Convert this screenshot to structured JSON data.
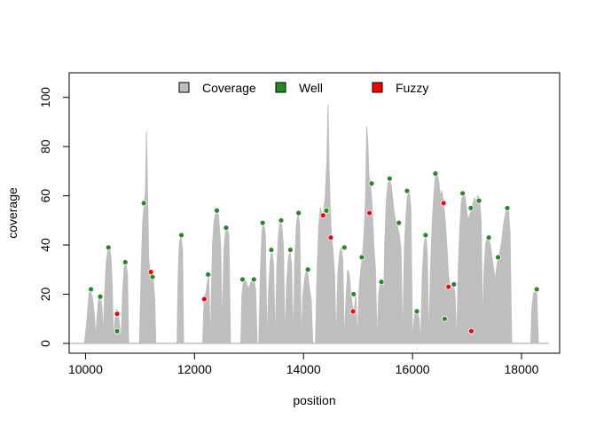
{
  "chart_data": {
    "type": "line",
    "title": "",
    "xlabel": "position",
    "ylabel": "coverage",
    "xlim": [
      9700,
      18700
    ],
    "ylim": [
      -4,
      110
    ],
    "xticks": [
      10000,
      12000,
      14000,
      16000,
      18000
    ],
    "yticks": [
      0,
      20,
      40,
      60,
      80,
      100
    ],
    "grid": false,
    "legend": {
      "position": "top",
      "entries": [
        {
          "label": "Coverage",
          "color": "#bebebe"
        },
        {
          "label": "Well",
          "color": "#228b22"
        },
        {
          "label": "Fuzzy",
          "color": "#ff0000"
        }
      ]
    },
    "colors": {
      "coverage": "#bebebe",
      "well": "#228b22",
      "fuzzy": "#ff0000"
    },
    "coverage_regions": [
      {
        "x": [
          9980,
          10020,
          10050,
          10070,
          10090,
          10110,
          10130,
          10160,
          10180,
          10200,
          10210
        ],
        "y": [
          0,
          8,
          16,
          21,
          22,
          20,
          18,
          12,
          6,
          2,
          0
        ]
      },
      {
        "x": [
          10190,
          10210,
          10240,
          10270,
          10300,
          10330
        ],
        "y": [
          0,
          10,
          18,
          20,
          15,
          0
        ]
      },
      {
        "x": [
          10320,
          10350,
          10380,
          10410,
          10440,
          10470,
          10490,
          10500,
          10520
        ],
        "y": [
          0,
          20,
          33,
          38,
          40,
          34,
          24,
          12,
          0
        ]
      },
      {
        "x": [
          10520,
          10540,
          10570,
          10600,
          10630,
          10650
        ],
        "y": [
          0,
          10,
          14,
          12,
          6,
          0
        ]
      },
      {
        "x": [
          10650,
          10680,
          10710,
          10740,
          10770,
          10790
        ],
        "y": [
          0,
          20,
          31,
          33,
          28,
          0
        ]
      },
      {
        "x": [
          10990,
          11020,
          11050,
          11080,
          11100,
          11120,
          11140,
          11160,
          11180,
          11200,
          11220,
          11240,
          11270,
          11290
        ],
        "y": [
          0,
          28,
          50,
          57,
          62,
          86,
          60,
          34,
          30,
          28,
          29,
          27,
          18,
          0
        ]
      },
      {
        "x": [
          11680,
          11700,
          11720,
          11750,
          11780,
          11800
        ],
        "y": [
          0,
          28,
          40,
          44,
          38,
          0
        ]
      },
      {
        "x": [
          12150,
          12170,
          12190,
          12210,
          12230,
          12260,
          12290
        ],
        "y": [
          0,
          14,
          20,
          20,
          24,
          28,
          0
        ]
      },
      {
        "x": [
          12290,
          12330,
          12360,
          12400,
          12440,
          12480,
          12510
        ],
        "y": [
          0,
          40,
          50,
          54,
          52,
          40,
          0
        ]
      },
      {
        "x": [
          12500,
          12540,
          12570,
          12600,
          12630,
          12660
        ],
        "y": [
          0,
          38,
          46,
          47,
          44,
          0
        ]
      },
      {
        "x": [
          12850,
          12870,
          12900,
          12930,
          12960,
          12990,
          13020,
          13060,
          13090,
          13120,
          13150
        ],
        "y": [
          0,
          20,
          26,
          26,
          24,
          22,
          24,
          26,
          26,
          22,
          0
        ]
      },
      {
        "x": [
          13180,
          13210,
          13240,
          13270,
          13300,
          13330
        ],
        "y": [
          0,
          30,
          46,
          49,
          44,
          0
        ]
      },
      {
        "x": [
          13330,
          13360,
          13390,
          13420,
          13450,
          13480
        ],
        "y": [
          0,
          22,
          34,
          38,
          32,
          0
        ]
      },
      {
        "x": [
          13480,
          13510,
          13540,
          13570,
          13600,
          13630,
          13660
        ],
        "y": [
          0,
          30,
          44,
          50,
          48,
          40,
          0
        ]
      },
      {
        "x": [
          13660,
          13690,
          13720,
          13750,
          13780,
          13810
        ],
        "y": [
          0,
          24,
          34,
          38,
          32,
          0
        ]
      },
      {
        "x": [
          13810,
          13840,
          13870,
          13900,
          13930,
          13960
        ],
        "y": [
          0,
          34,
          48,
          53,
          47,
          0
        ]
      },
      {
        "x": [
          13960,
          13990,
          14020,
          14050,
          14080,
          14110,
          14140,
          14170
        ],
        "y": [
          0,
          20,
          26,
          30,
          28,
          22,
          18,
          0
        ]
      },
      {
        "x": [
          14220,
          14250,
          14280,
          14310,
          14340,
          14370,
          14400,
          14430,
          14450,
          14470,
          14490,
          14510,
          14540,
          14570,
          14600
        ],
        "y": [
          0,
          30,
          48,
          55,
          52,
          54,
          60,
          75,
          97,
          70,
          55,
          44,
          38,
          28,
          0
        ]
      },
      {
        "x": [
          14600,
          14630,
          14660,
          14690,
          14720,
          14750
        ],
        "y": [
          0,
          28,
          36,
          39,
          34,
          0
        ]
      },
      {
        "x": [
          14750,
          14780,
          14810,
          14840,
          14870,
          14900,
          14930,
          14960,
          14990
        ],
        "y": [
          0,
          18,
          30,
          28,
          20,
          15,
          13,
          20,
          0
        ]
      },
      {
        "x": [
          14990,
          15020,
          15050,
          15080,
          15110,
          15140,
          15160,
          15180,
          15200,
          15230,
          15260,
          15290,
          15320,
          15350
        ],
        "y": [
          0,
          22,
          30,
          35,
          44,
          60,
          88,
          82,
          68,
          65,
          55,
          40,
          30,
          0
        ]
      },
      {
        "x": [
          15350,
          15380,
          15410,
          15440,
          15470,
          15500
        ],
        "y": [
          0,
          20,
          26,
          25,
          22,
          0
        ]
      },
      {
        "x": [
          15460,
          15490,
          15520,
          15550,
          15580,
          15610,
          15640,
          15670,
          15700,
          15730,
          15760,
          15790,
          15820
        ],
        "y": [
          0,
          40,
          58,
          65,
          67,
          64,
          58,
          52,
          49,
          47,
          44,
          38,
          0
        ]
      },
      {
        "x": [
          15820,
          15850,
          15880,
          15910,
          15940,
          15970,
          16000
        ],
        "y": [
          0,
          38,
          52,
          60,
          62,
          55,
          0
        ]
      },
      {
        "x": [
          16000,
          16030,
          16060,
          16090,
          16120,
          16150
        ],
        "y": [
          0,
          10,
          14,
          13,
          10,
          0
        ]
      },
      {
        "x": [
          16150,
          16180,
          16210,
          16240,
          16270,
          16300
        ],
        "y": [
          0,
          28,
          40,
          44,
          38,
          0
        ]
      },
      {
        "x": [
          16300,
          16330,
          16360,
          16390,
          16420,
          16450,
          16480,
          16510,
          16540,
          16570,
          16600,
          16630,
          16660,
          16690,
          16720,
          16750,
          16780,
          16810
        ],
        "y": [
          0,
          30,
          48,
          60,
          68,
          69,
          66,
          60,
          62,
          57,
          50,
          40,
          28,
          23,
          23,
          24,
          20,
          0
        ]
      },
      {
        "x": [
          16810,
          16840,
          16870,
          16900,
          16930,
          16960,
          16990,
          17020,
          17050,
          17080,
          17110,
          17140,
          17170,
          17200,
          17230,
          17260,
          17290
        ],
        "y": [
          0,
          30,
          48,
          58,
          61,
          60,
          55,
          50,
          52,
          55,
          57,
          59,
          58,
          60,
          58,
          50,
          0
        ]
      },
      {
        "x": [
          17280,
          17310,
          17340,
          17370,
          17400,
          17430,
          17460,
          17490,
          17520,
          17550,
          17580,
          17610,
          17640,
          17670,
          17700,
          17730,
          17760,
          17790,
          17820
        ],
        "y": [
          0,
          28,
          40,
          43,
          42,
          40,
          35,
          30,
          26,
          32,
          35,
          38,
          42,
          48,
          52,
          55,
          55,
          45,
          0
        ]
      },
      {
        "x": [
          18170,
          18190,
          18220,
          18250,
          18280,
          18310
        ],
        "y": [
          0,
          14,
          20,
          22,
          20,
          0
        ]
      }
    ],
    "series": [
      {
        "name": "Well",
        "x": [
          10100,
          10270,
          10420,
          10580,
          10730,
          11070,
          11230,
          11760,
          12250,
          12410,
          12580,
          12880,
          13090,
          13250,
          13410,
          13590,
          13760,
          13910,
          14080,
          14420,
          14750,
          14920,
          15070,
          15250,
          15430,
          15580,
          15750,
          15900,
          16080,
          16240,
          16420,
          16590,
          16760,
          16920,
          17070,
          17220,
          17400,
          17570,
          17740,
          18280
        ],
        "y": [
          22,
          19,
          39,
          5,
          33,
          57,
          27,
          44,
          28,
          54,
          47,
          26,
          26,
          49,
          38,
          50,
          38,
          53,
          30,
          54,
          39,
          20,
          35,
          65,
          25,
          67,
          49,
          62,
          13,
          44,
          69,
          10,
          24,
          61,
          55,
          58,
          43,
          35,
          55,
          22
        ]
      },
      {
        "name": "Fuzzy",
        "x": [
          10580,
          11200,
          12180,
          14360,
          14500,
          14910,
          15210,
          16570,
          16660,
          17080
        ],
        "y": [
          12,
          29,
          18,
          52,
          43,
          13,
          53,
          57,
          23,
          5
        ]
      }
    ]
  }
}
